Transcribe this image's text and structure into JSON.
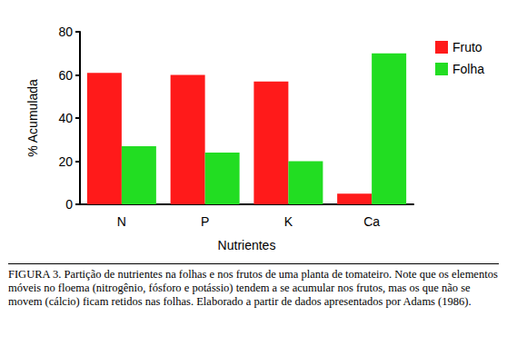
{
  "chart_data": {
    "type": "bar",
    "categories": [
      "N",
      "P",
      "K",
      "Ca"
    ],
    "series": [
      {
        "name": "Fruto",
        "color": "#ff1a1a",
        "values": [
          61,
          60,
          57,
          5
        ]
      },
      {
        "name": "Folha",
        "color": "#22dd22",
        "values": [
          27,
          24,
          20,
          70
        ]
      }
    ],
    "x_label": "Nutrientes",
    "y_label": "% Acumulada",
    "ylim": [
      0,
      80
    ],
    "yticks": [
      0,
      20,
      40,
      60,
      80
    ],
    "grid": false,
    "legend": "upper right",
    "caption": "FIGURA 3. Partição de nutrientes na folhas e nos frutos de uma planta de tomateiro. Note que os elementos móveis no floema (nitrogênio, fósforo e potássio) tendem a se acumular nos frutos, mas os que não se movem (cálcio) ficam retidos nas folhas. Elaborado a partir de dados apresentados por Adams (1986)."
  }
}
